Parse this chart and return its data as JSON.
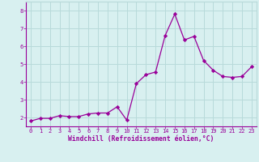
{
  "x": [
    0,
    1,
    2,
    3,
    4,
    5,
    6,
    7,
    8,
    9,
    10,
    11,
    12,
    13,
    14,
    15,
    16,
    17,
    18,
    19,
    20,
    21,
    22,
    23
  ],
  "y": [
    1.8,
    1.95,
    1.95,
    2.1,
    2.05,
    2.05,
    2.2,
    2.25,
    2.25,
    2.6,
    1.85,
    3.9,
    4.4,
    4.55,
    6.6,
    7.8,
    6.35,
    6.55,
    5.2,
    4.65,
    4.3,
    4.25,
    4.3,
    4.85
  ],
  "ylim": [
    1.5,
    8.5
  ],
  "xlim": [
    -0.5,
    23.5
  ],
  "yticks": [
    2,
    3,
    4,
    5,
    6,
    7,
    8
  ],
  "xticks": [
    0,
    1,
    2,
    3,
    4,
    5,
    6,
    7,
    8,
    9,
    10,
    11,
    12,
    13,
    14,
    15,
    16,
    17,
    18,
    19,
    20,
    21,
    22,
    23
  ],
  "xlabel": "Windchill (Refroidissement éolien,°C)",
  "line_color": "#990099",
  "marker": "D",
  "marker_size": 2.2,
  "bg_color": "#d8f0f0",
  "grid_color": "#b8dada",
  "axis_color": "#990099",
  "tick_color": "#990099",
  "label_color": "#990099",
  "fig_bg": "#d8f0f0",
  "tick_fontsize": 5.0,
  "xlabel_fontsize": 5.8
}
